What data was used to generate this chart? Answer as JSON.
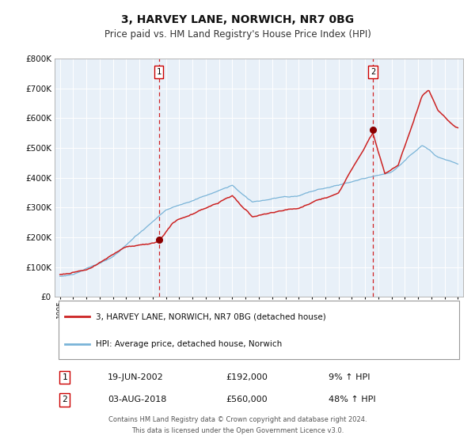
{
  "title": "3, HARVEY LANE, NORWICH, NR7 0BG",
  "subtitle": "Price paid vs. HM Land Registry's House Price Index (HPI)",
  "legend_line1": "3, HARVEY LANE, NORWICH, NR7 0BG (detached house)",
  "legend_line2": "HPI: Average price, detached house, Norwich",
  "sale1_date": "19-JUN-2002",
  "sale1_price": "£192,000",
  "sale1_pct": "9% ↑ HPI",
  "sale2_date": "03-AUG-2018",
  "sale2_price": "£560,000",
  "sale2_pct": "48% ↑ HPI",
  "footer1": "Contains HM Land Registry data © Crown copyright and database right 2024.",
  "footer2": "This data is licensed under the Open Government Licence v3.0.",
  "hpi_color": "#7ab4d8",
  "price_color": "#cc2222",
  "sale_marker_color": "#8b0000",
  "plot_bg": "#e8f0f8",
  "grid_color": "#ffffff",
  "ylim": [
    0,
    800000
  ],
  "xlim_start": 1994.6,
  "xlim_end": 2025.4,
  "sale1_year": 2002.46,
  "sale2_year": 2018.59,
  "sale1_value": 192000,
  "sale2_value": 560000
}
